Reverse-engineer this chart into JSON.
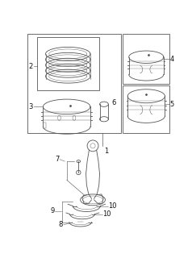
{
  "bg_color": "#ffffff",
  "line_color": "#555555",
  "label_color": "#111111",
  "fig_width": 2.38,
  "fig_height": 3.2,
  "dpi": 100
}
